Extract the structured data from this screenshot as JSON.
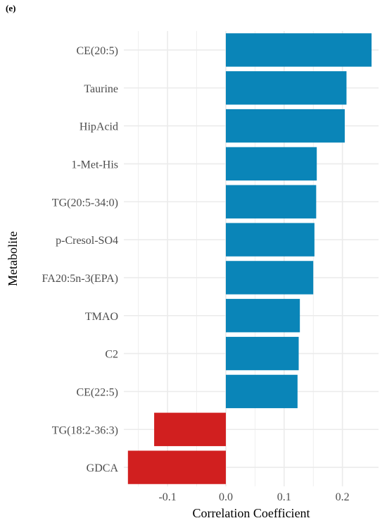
{
  "panel_tag": "(e)",
  "chart_data": {
    "type": "bar",
    "orientation": "horizontal",
    "xlabel": "Correlation Coefficient",
    "ylabel": "Metabolite",
    "xlim": [
      -0.175,
      0.262
    ],
    "xticks": [
      -0.1,
      0.0,
      0.1,
      0.2
    ],
    "xtick_labels": [
      "-0.1",
      "0.0",
      "0.1",
      "0.2"
    ],
    "grid": true,
    "categories": [
      "CE(20:5)",
      "Taurine",
      "HipAcid",
      "1-Met-His",
      "TG(20:5-34:0)",
      "p-Cresol-SO4",
      "FA20:5n-3(EPA)",
      "TMAO",
      "C2",
      "CE(22:5)",
      "TG(18:2-36:3)",
      "GDCA"
    ],
    "values": [
      0.25,
      0.207,
      0.204,
      0.156,
      0.155,
      0.152,
      0.15,
      0.127,
      0.125,
      0.123,
      -0.123,
      -0.168
    ],
    "colors": {
      "positive": "#0a85b8",
      "negative": "#d11f1f",
      "grid": "#ebebeb"
    }
  }
}
